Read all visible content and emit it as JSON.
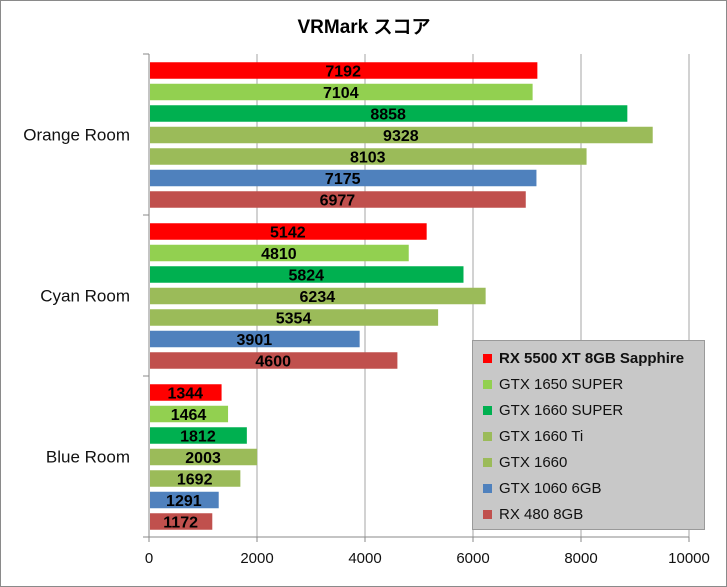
{
  "chart_data": {
    "type": "bar",
    "orientation": "horizontal",
    "title": "VRMark スコア",
    "xlabel": "",
    "ylabel": "",
    "xlim": [
      0,
      10000
    ],
    "x_ticks": [
      0,
      2000,
      4000,
      6000,
      8000,
      10000
    ],
    "grid": true,
    "legend_position": "bottom-right",
    "categories": [
      "Orange Room",
      "Cyan Room",
      "Blue Room"
    ],
    "series": [
      {
        "name": "RX 5500 XT 8GB Sapphire",
        "color": "#ff0000",
        "values": [
          7192,
          5142,
          1344
        ]
      },
      {
        "name": "GTX 1650 SUPER",
        "color": "#92d050",
        "values": [
          7104,
          4810,
          1464
        ]
      },
      {
        "name": "GTX 1660 SUPER",
        "color": "#00b050",
        "values": [
          8858,
          5824,
          1812
        ]
      },
      {
        "name": "GTX 1660 Ti",
        "color": "#9bbb59",
        "values": [
          9328,
          6234,
          2003
        ]
      },
      {
        "name": "GTX 1660",
        "color": "#9bbb59",
        "values": [
          8103,
          5354,
          1692
        ]
      },
      {
        "name": "GTX 1060 6GB",
        "color": "#4f81bd",
        "values": [
          7175,
          3901,
          1291
        ]
      },
      {
        "name": "RX 480 8GB",
        "color": "#c0504d",
        "values": [
          6977,
          4600,
          1172
        ]
      }
    ]
  }
}
